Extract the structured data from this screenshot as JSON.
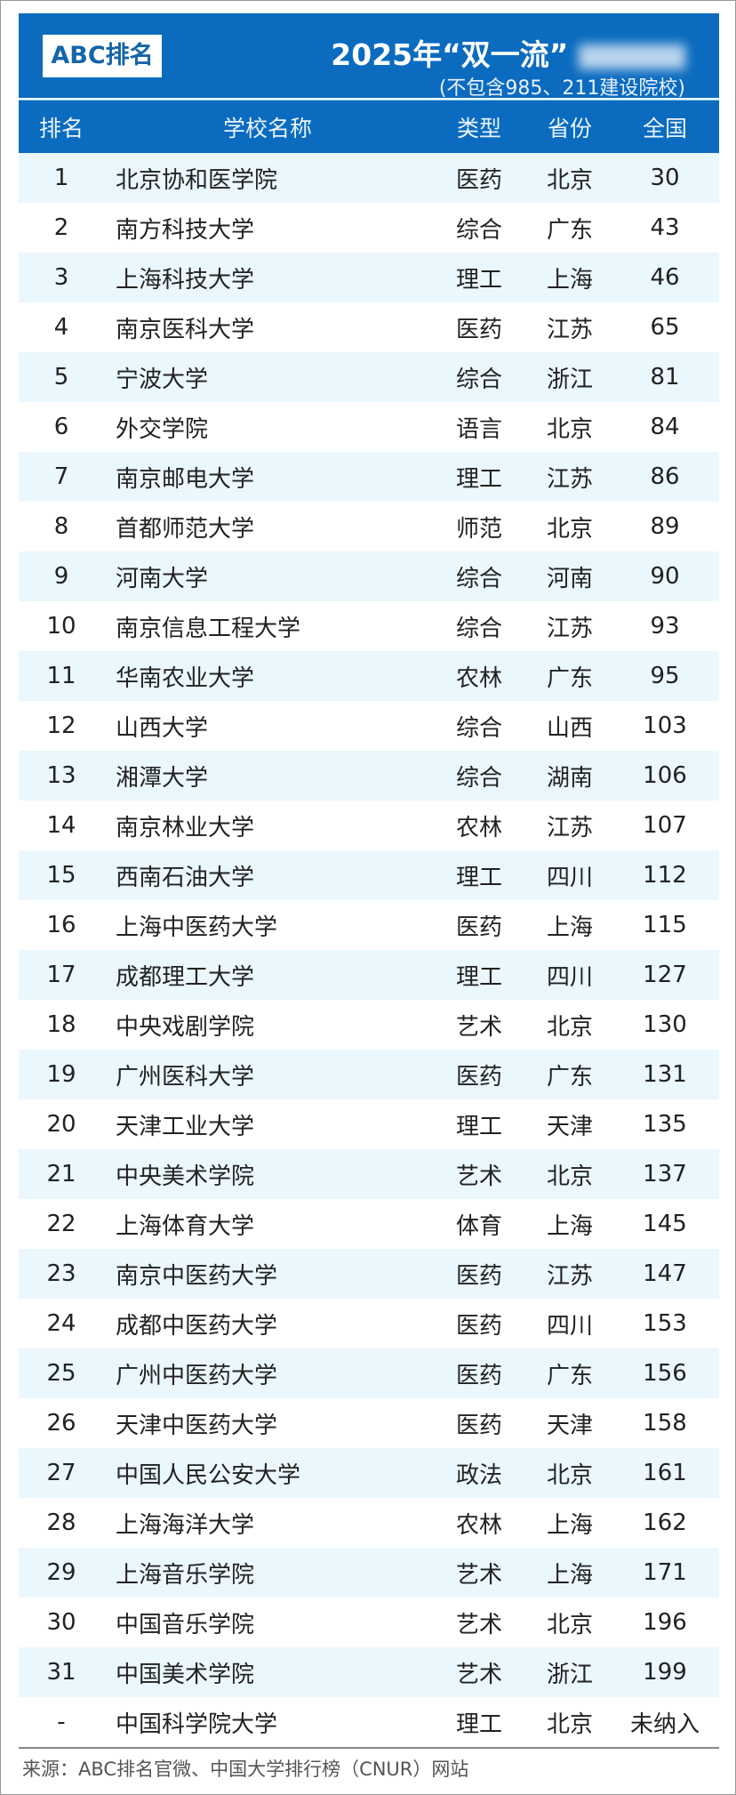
{
  "logo": "ABC排名",
  "title": "2025年“双一流”",
  "subtitle": "(不包含985、211建设院校)",
  "header": {
    "rank": "排名",
    "name": "学校名称",
    "type": "类型",
    "province": "省份",
    "national": "全国"
  },
  "colors": {
    "header_bg": "#0b6bbf",
    "row_alt": "#eaf7fc"
  },
  "rows": [
    {
      "rank": "1",
      "name": "北京协和医学院",
      "type": "医药",
      "province": "北京",
      "national": "30"
    },
    {
      "rank": "2",
      "name": "南方科技大学",
      "type": "综合",
      "province": "广东",
      "national": "43"
    },
    {
      "rank": "3",
      "name": "上海科技大学",
      "type": "理工",
      "province": "上海",
      "national": "46"
    },
    {
      "rank": "4",
      "name": "南京医科大学",
      "type": "医药",
      "province": "江苏",
      "national": "65"
    },
    {
      "rank": "5",
      "name": "宁波大学",
      "type": "综合",
      "province": "浙江",
      "national": "81"
    },
    {
      "rank": "6",
      "name": "外交学院",
      "type": "语言",
      "province": "北京",
      "national": "84"
    },
    {
      "rank": "7",
      "name": "南京邮电大学",
      "type": "理工",
      "province": "江苏",
      "national": "86"
    },
    {
      "rank": "8",
      "name": "首都师范大学",
      "type": "师范",
      "province": "北京",
      "national": "89"
    },
    {
      "rank": "9",
      "name": "河南大学",
      "type": "综合",
      "province": "河南",
      "national": "90"
    },
    {
      "rank": "10",
      "name": "南京信息工程大学",
      "type": "综合",
      "province": "江苏",
      "national": "93"
    },
    {
      "rank": "11",
      "name": "华南农业大学",
      "type": "农林",
      "province": "广东",
      "national": "95"
    },
    {
      "rank": "12",
      "name": "山西大学",
      "type": "综合",
      "province": "山西",
      "national": "103"
    },
    {
      "rank": "13",
      "name": "湘潭大学",
      "type": "综合",
      "province": "湖南",
      "national": "106"
    },
    {
      "rank": "14",
      "name": "南京林业大学",
      "type": "农林",
      "province": "江苏",
      "national": "107"
    },
    {
      "rank": "15",
      "name": "西南石油大学",
      "type": "理工",
      "province": "四川",
      "national": "112"
    },
    {
      "rank": "16",
      "name": "上海中医药大学",
      "type": "医药",
      "province": "上海",
      "national": "115"
    },
    {
      "rank": "17",
      "name": "成都理工大学",
      "type": "理工",
      "province": "四川",
      "national": "127"
    },
    {
      "rank": "18",
      "name": "中央戏剧学院",
      "type": "艺术",
      "province": "北京",
      "national": "130"
    },
    {
      "rank": "19",
      "name": "广州医科大学",
      "type": "医药",
      "province": "广东",
      "national": "131"
    },
    {
      "rank": "20",
      "name": "天津工业大学",
      "type": "理工",
      "province": "天津",
      "national": "135"
    },
    {
      "rank": "21",
      "name": "中央美术学院",
      "type": "艺术",
      "province": "北京",
      "national": "137"
    },
    {
      "rank": "22",
      "name": "上海体育大学",
      "type": "体育",
      "province": "上海",
      "national": "145"
    },
    {
      "rank": "23",
      "name": "南京中医药大学",
      "type": "医药",
      "province": "江苏",
      "national": "147"
    },
    {
      "rank": "24",
      "name": "成都中医药大学",
      "type": "医药",
      "province": "四川",
      "national": "153"
    },
    {
      "rank": "25",
      "name": "广州中医药大学",
      "type": "医药",
      "province": "广东",
      "national": "156"
    },
    {
      "rank": "26",
      "name": "天津中医药大学",
      "type": "医药",
      "province": "天津",
      "national": "158"
    },
    {
      "rank": "27",
      "name": "中国人民公安大学",
      "type": "政法",
      "province": "北京",
      "national": "161"
    },
    {
      "rank": "28",
      "name": "上海海洋大学",
      "type": "农林",
      "province": "上海",
      "national": "162"
    },
    {
      "rank": "29",
      "name": "上海音乐学院",
      "type": "艺术",
      "province": "上海",
      "national": "171"
    },
    {
      "rank": "30",
      "name": "中国音乐学院",
      "type": "艺术",
      "province": "北京",
      "national": "196"
    },
    {
      "rank": "31",
      "name": "中国美术学院",
      "type": "艺术",
      "province": "浙江",
      "national": "199"
    },
    {
      "rank": "-",
      "name": "中国科学院大学",
      "type": "理工",
      "province": "北京",
      "national": "未纳入"
    }
  ],
  "footer": "来源：ABC排名官微、中国大学排行榜（CNUR）网站"
}
